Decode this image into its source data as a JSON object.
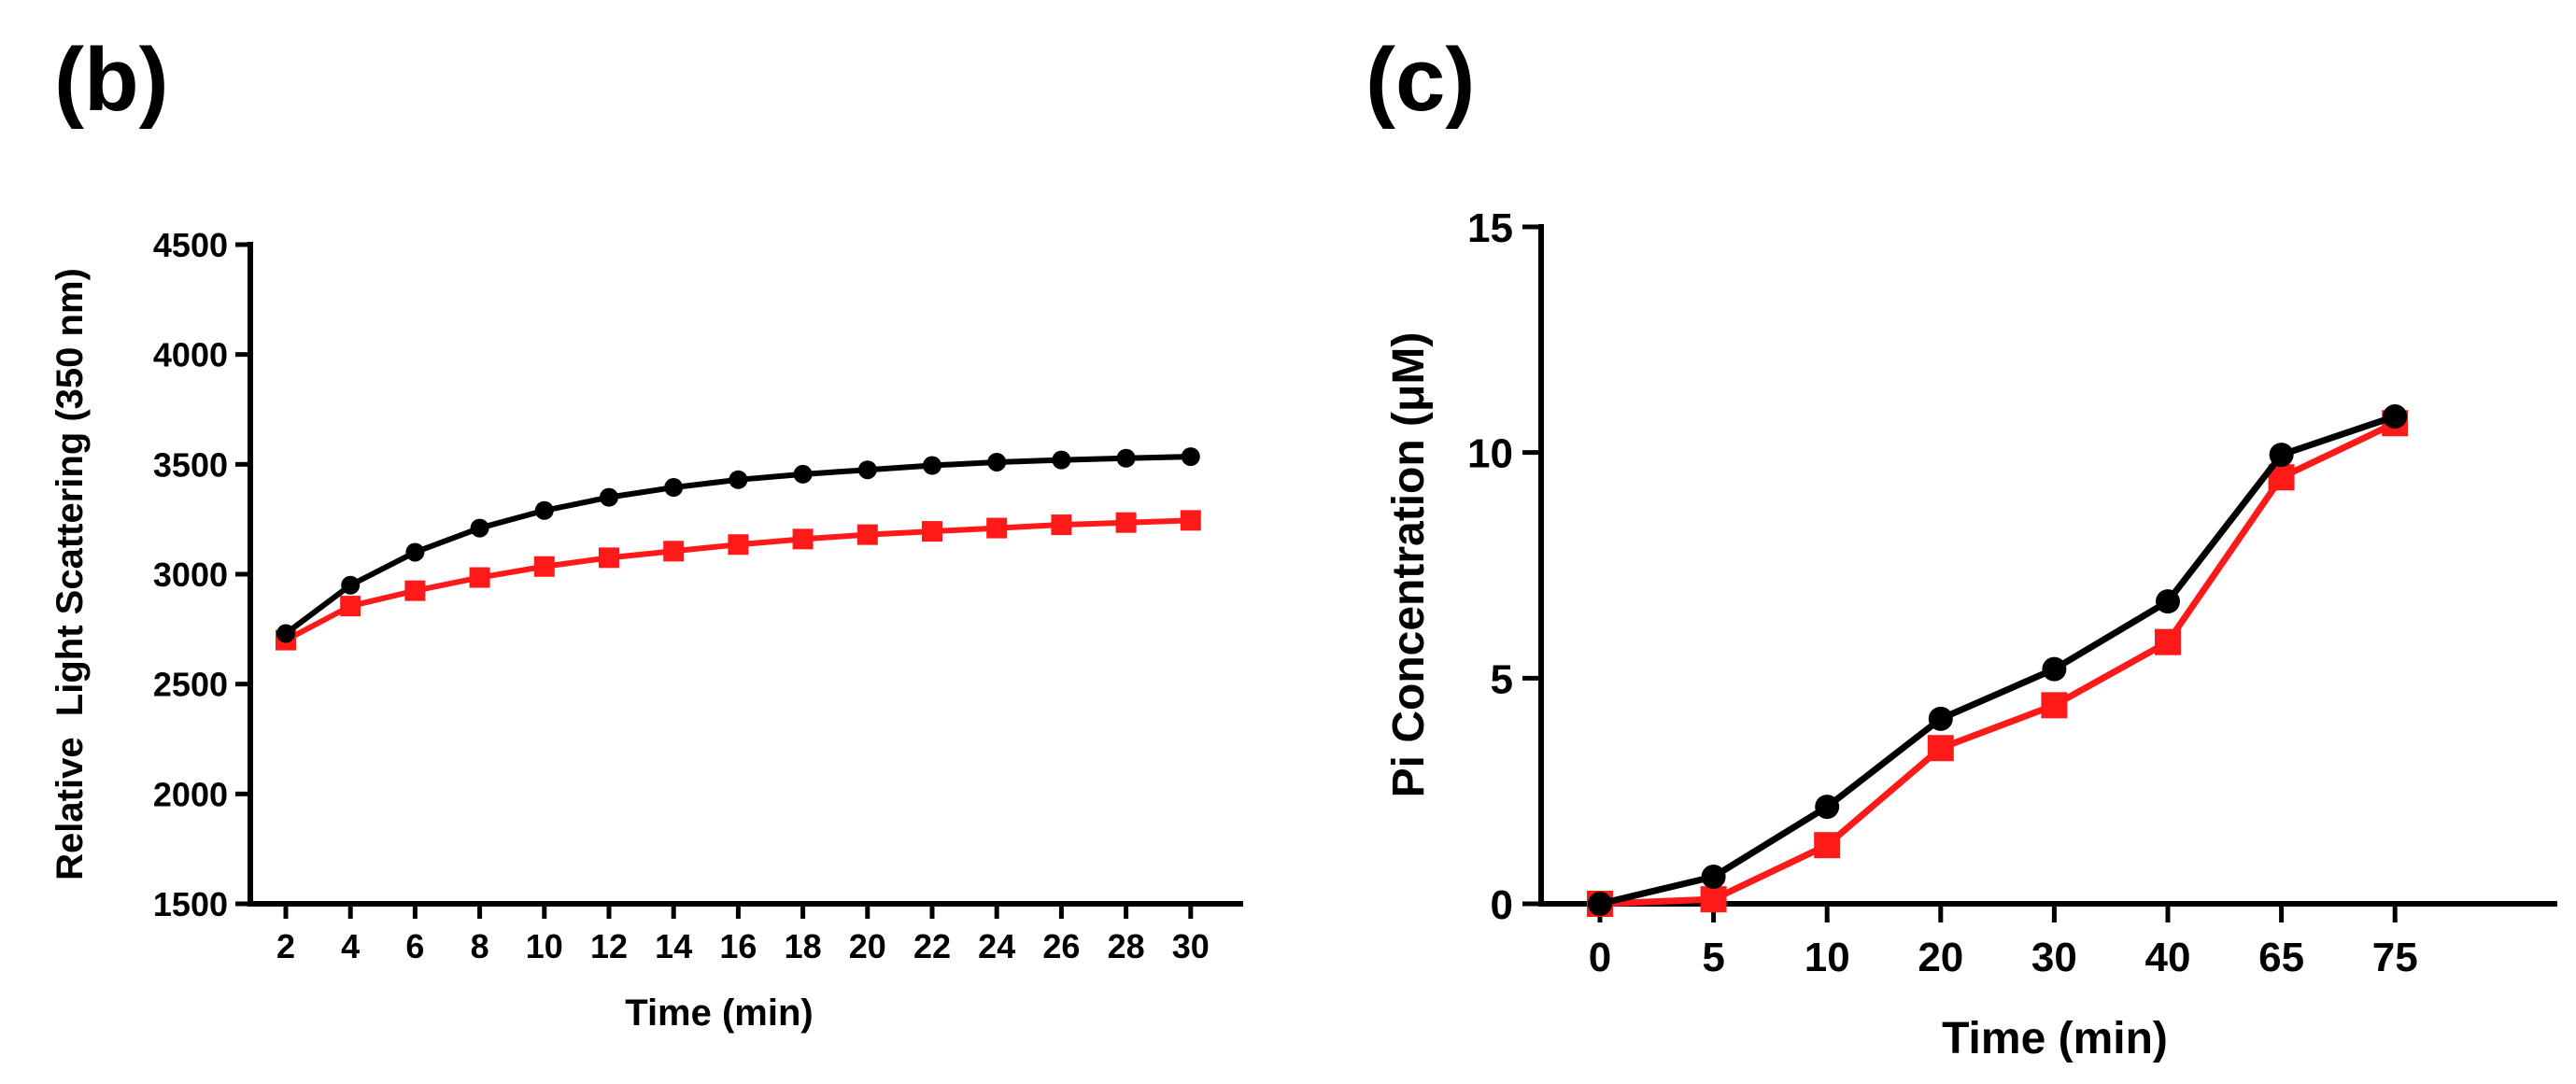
{
  "chart_data": [
    {
      "panel_label": "(b)",
      "type": "line",
      "title": "",
      "xlabel": "Time (min)",
      "ylabel": "Relative  Light Scattering (350 nm)",
      "x": [
        2,
        4,
        6,
        8,
        10,
        12,
        14,
        16,
        18,
        20,
        22,
        24,
        26,
        28,
        30
      ],
      "x_tick_labels": [
        "2",
        "4",
        "6",
        "8",
        "10",
        "12",
        "14",
        "16",
        "18",
        "20",
        "22",
        "24",
        "26",
        "28",
        "30"
      ],
      "ylim": [
        1500,
        4500
      ],
      "y_ticks": [
        1500,
        2000,
        2500,
        3000,
        3500,
        4000,
        4500
      ],
      "y_tick_labels": [
        "1500",
        "2000",
        "2500",
        "3000",
        "3500",
        "4000",
        "4500"
      ],
      "series": [
        {
          "name": "black",
          "color": "#000000",
          "marker": "circle",
          "values": [
            2730,
            2950,
            3100,
            3210,
            3290,
            3350,
            3395,
            3430,
            3455,
            3475,
            3495,
            3510,
            3520,
            3528,
            3535
          ]
        },
        {
          "name": "red",
          "color": "#ff1a1a",
          "marker": "square",
          "values": [
            2700,
            2855,
            2925,
            2985,
            3035,
            3075,
            3105,
            3135,
            3160,
            3180,
            3195,
            3210,
            3225,
            3235,
            3245
          ]
        }
      ]
    },
    {
      "panel_label": "(c)",
      "type": "line",
      "title": "",
      "xlabel": "Time (min)",
      "ylabel": "Pi Concentration (μM)",
      "categories": [
        "0",
        "5",
        "10",
        "20",
        "30",
        "40",
        "65",
        "75"
      ],
      "ylim": [
        0,
        15
      ],
      "y_ticks": [
        0,
        5,
        10,
        15
      ],
      "y_tick_labels": [
        "0",
        "5",
        "10",
        "15"
      ],
      "series": [
        {
          "name": "black",
          "color": "#000000",
          "marker": "circle",
          "values": [
            0,
            0.6,
            2.15,
            4.1,
            5.2,
            6.7,
            9.95,
            10.8
          ]
        },
        {
          "name": "red",
          "color": "#ff1a1a",
          "marker": "square",
          "values": [
            0,
            0.1,
            1.3,
            3.45,
            4.4,
            5.8,
            9.45,
            10.65
          ]
        }
      ]
    }
  ]
}
